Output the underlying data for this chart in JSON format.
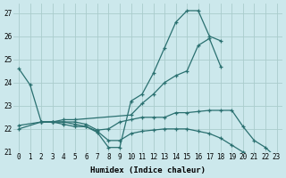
{
  "xlabel": "Humidex (Indice chaleur)",
  "background_color": "#cce8ec",
  "grid_color": "#aacccc",
  "line_color": "#2a7070",
  "xlim": [
    -0.5,
    23.5
  ],
  "ylim": [
    21,
    27.4
  ],
  "yticks": [
    21,
    22,
    23,
    24,
    25,
    26,
    27
  ],
  "xticks": [
    0,
    1,
    2,
    3,
    4,
    5,
    6,
    7,
    8,
    9,
    10,
    11,
    12,
    13,
    14,
    15,
    16,
    17,
    18,
    19,
    20,
    21,
    22,
    23
  ],
  "lines": [
    {
      "x": [
        0,
        1,
        2,
        3,
        4,
        5,
        6,
        7,
        8,
        9,
        10,
        11,
        12,
        13,
        14,
        15,
        16,
        17,
        18
      ],
      "y": [
        24.6,
        23.9,
        22.3,
        22.3,
        22.2,
        22.1,
        22.1,
        21.85,
        21.2,
        21.2,
        23.2,
        23.5,
        24.4,
        25.5,
        26.6,
        27.1,
        27.1,
        26.0,
        25.8
      ]
    },
    {
      "x": [
        0,
        2,
        3,
        4,
        5,
        10,
        11,
        12,
        13,
        14,
        15,
        16,
        17,
        18
      ],
      "y": [
        22.0,
        22.3,
        22.3,
        22.4,
        22.4,
        22.6,
        23.1,
        23.5,
        24.0,
        24.3,
        24.5,
        25.6,
        25.9,
        24.7
      ]
    },
    {
      "x": [
        2,
        3,
        4,
        5,
        6,
        7,
        8,
        9,
        10,
        11,
        12,
        13,
        14,
        15,
        16,
        17,
        18,
        19,
        20,
        21,
        22,
        23
      ],
      "y": [
        22.3,
        22.3,
        22.3,
        22.3,
        22.2,
        21.95,
        22.0,
        22.3,
        22.4,
        22.5,
        22.5,
        22.5,
        22.7,
        22.7,
        22.75,
        22.8,
        22.8,
        22.8,
        22.1,
        21.5,
        21.2,
        20.75
      ]
    },
    {
      "x": [
        0,
        2,
        3,
        4,
        5,
        6,
        7,
        8,
        9,
        10,
        11,
        12,
        13,
        14,
        15,
        16,
        17,
        18,
        19,
        20,
        21,
        22,
        23
      ],
      "y": [
        22.15,
        22.3,
        22.3,
        22.3,
        22.2,
        22.1,
        21.9,
        21.5,
        21.5,
        21.8,
        21.9,
        21.95,
        22.0,
        22.0,
        22.0,
        21.9,
        21.8,
        21.6,
        21.3,
        21.0,
        20.9,
        20.7,
        20.6
      ]
    }
  ]
}
